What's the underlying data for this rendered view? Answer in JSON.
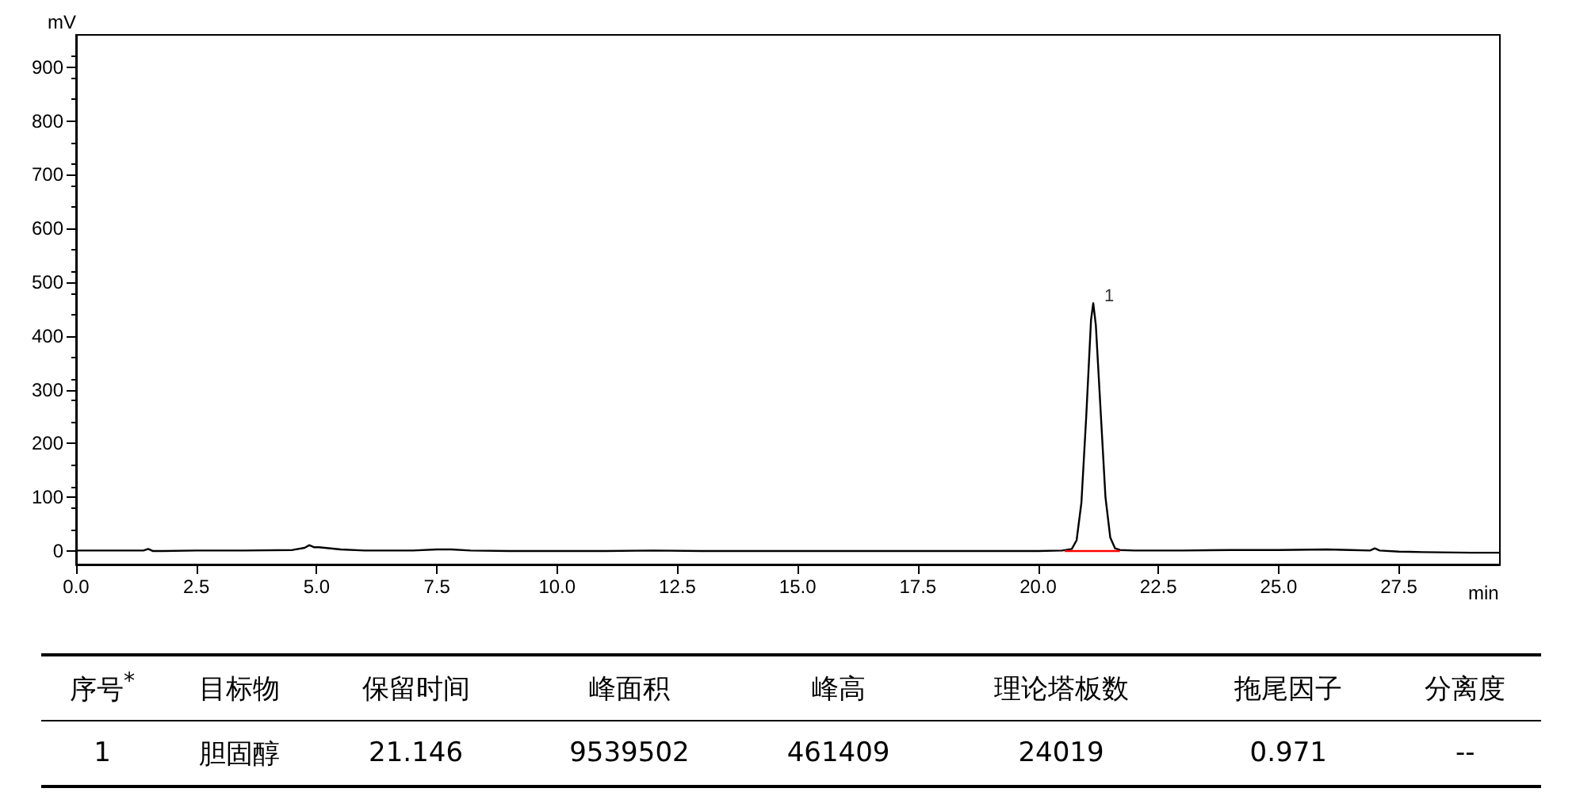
{
  "chart_data": {
    "type": "line",
    "xlabel": "min",
    "ylabel": "mV",
    "xlim": [
      0,
      29.6
    ],
    "ylim": [
      -25,
      960
    ],
    "xticks": [
      {
        "value": 0,
        "label": "0.0"
      },
      {
        "value": 2.5,
        "label": "2.5"
      },
      {
        "value": 5,
        "label": "5.0"
      },
      {
        "value": 7.5,
        "label": "7.5"
      },
      {
        "value": 10,
        "label": "10.0"
      },
      {
        "value": 12.5,
        "label": "12.5"
      },
      {
        "value": 15,
        "label": "15.0"
      },
      {
        "value": 17.5,
        "label": "17.5"
      },
      {
        "value": 20,
        "label": "20.0"
      },
      {
        "value": 22.5,
        "label": "22.5"
      },
      {
        "value": 25,
        "label": "25.0"
      },
      {
        "value": 27.5,
        "label": "27.5"
      }
    ],
    "yticks": [
      0,
      100,
      200,
      300,
      400,
      500,
      600,
      700,
      800,
      900
    ],
    "grid": false,
    "marker": "none",
    "line_style": "solid",
    "series": [
      {
        "color": "#000000",
        "x": [
          0,
          1.0,
          1.4,
          1.5,
          1.6,
          1.8,
          2.5,
          3.5,
          4.5,
          4.75,
          4.85,
          4.95,
          5.05,
          5.5,
          6.0,
          7.0,
          7.5,
          7.8,
          8.2,
          9.0,
          10.0,
          11.0,
          12.0,
          13.0,
          14.0,
          15.0,
          16.0,
          17.0,
          18.0,
          19.0,
          20.0,
          20.5,
          20.7,
          20.8,
          20.9,
          21.0,
          21.1,
          21.146,
          21.2,
          21.3,
          21.4,
          21.5,
          21.6,
          21.7,
          22.0,
          23.0,
          24.0,
          25.0,
          26.0,
          26.5,
          26.9,
          27.0,
          27.1,
          27.5,
          28.0,
          29.0,
          29.6
        ],
        "values": [
          1,
          1,
          1,
          4,
          0,
          0,
          1,
          1,
          2,
          6,
          11,
          7,
          7,
          3,
          1,
          1,
          3,
          3,
          1,
          0,
          0,
          0,
          1,
          0,
          0,
          0,
          0,
          0,
          0,
          0,
          0,
          1,
          4,
          20,
          90,
          250,
          430,
          461,
          420,
          260,
          100,
          25,
          5,
          2,
          1,
          1,
          2,
          2,
          3,
          2,
          1,
          5,
          1,
          -1,
          -2,
          -3,
          -3
        ]
      },
      {
        "color": "#ff0000",
        "x": [
          20.55,
          21.7
        ],
        "values": [
          0,
          0
        ]
      }
    ],
    "annotations": [
      {
        "text": "1",
        "x": 21.146,
        "y": 461
      },
      "序号$^{*}$",
      "目标物",
      "保留时间",
      "峰面积",
      "峰高",
      "理论塔板数",
      "拖尾因子",
      "分离度",
      "1",
      "胆固醇",
      "21.146",
      "9539502",
      "461409",
      "24019",
      "0.971",
      "--"
    ]
  }
}
